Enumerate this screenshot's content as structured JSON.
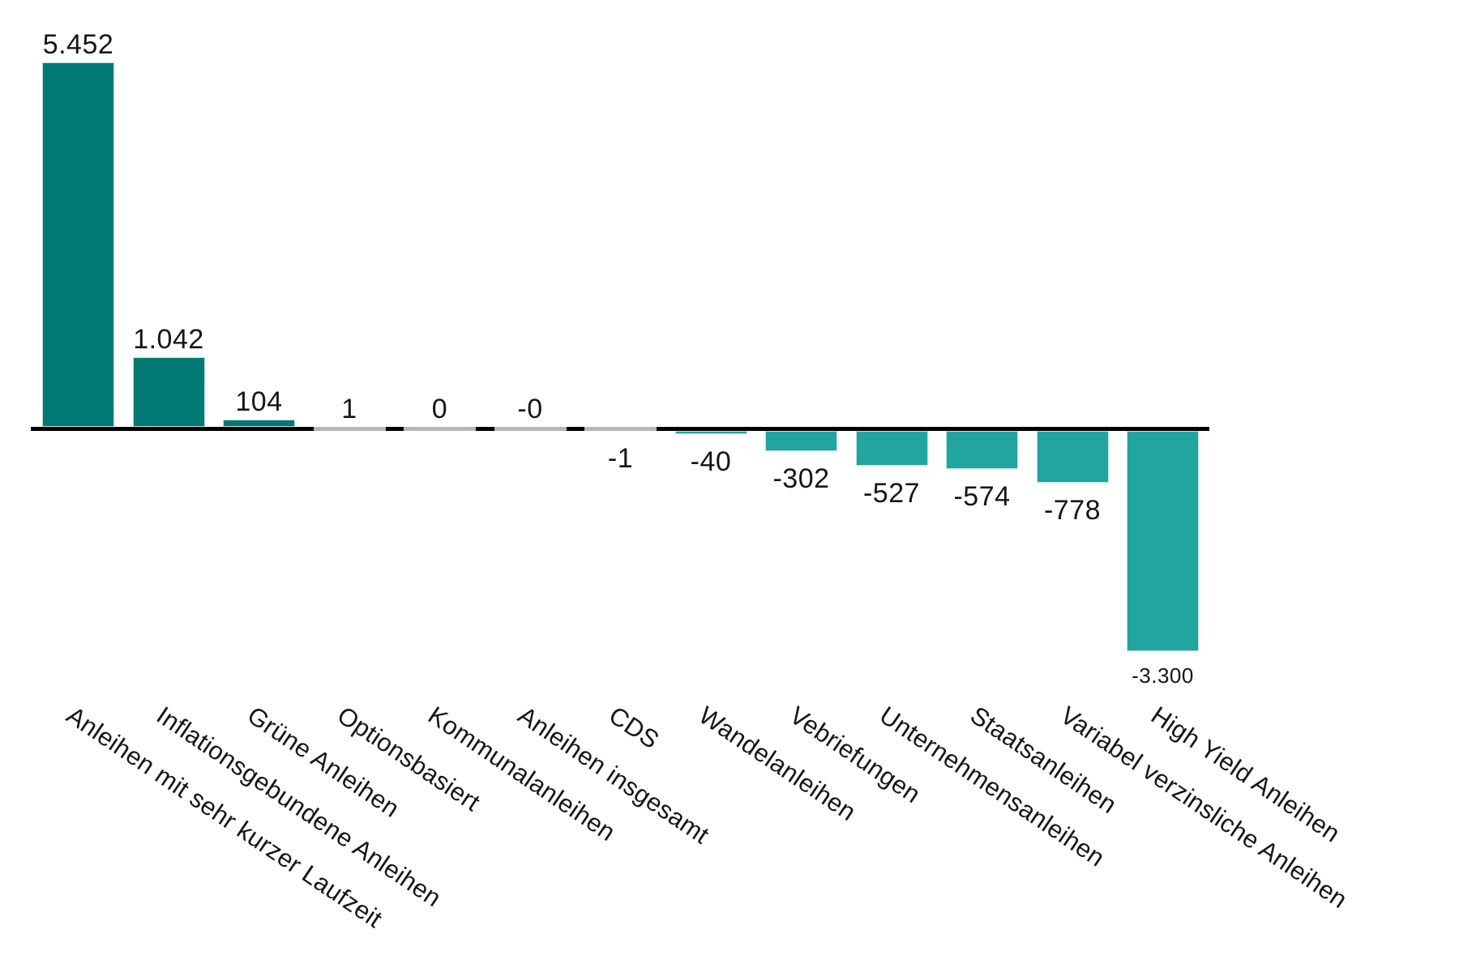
{
  "chart_data": {
    "type": "bar",
    "title": "",
    "xlabel": "",
    "ylabel": "",
    "grid": false,
    "legend": false,
    "orientation": "vertical",
    "ylim": [
      -3300,
      5452
    ],
    "categories": [
      "Anleihen mit sehr kurzer Laufzeit",
      "Inflationsgebundene Anleihen",
      "Grüne Anleihen",
      "Optionsbasiert",
      "Kommunalanleihen",
      "Anleihen insgesamt",
      "CDS",
      "Wandelanleihen",
      "Vebriefungen",
      "Unternehmensanleihen",
      "Staatsanleihen",
      "Variabel verzinsliche Anleihen",
      "High Yield Anleihen"
    ],
    "values": [
      5452,
      1042,
      104,
      1,
      0,
      0,
      -1,
      -40,
      -302,
      -527,
      -574,
      -778,
      -3300
    ],
    "value_labels": [
      "5.452",
      "1.042",
      "104",
      "1",
      "0",
      "-0",
      "-1",
      "-40",
      "-302",
      "-527",
      "-574",
      "-778",
      "-3.300"
    ],
    "small_value_labels": [
      "-3.300"
    ],
    "colors": {
      "positive_bar": "#017A75",
      "negative_bar": "#21A59E",
      "near_zero_bar": "#B3B8BF",
      "bar_stroke": "#DEF0F2",
      "axis_line": "#000000",
      "label_text": "#161616"
    }
  }
}
